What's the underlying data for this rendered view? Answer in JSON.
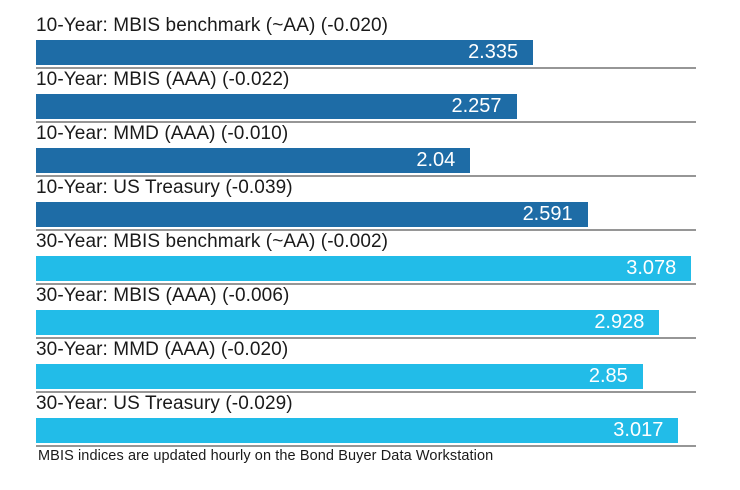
{
  "chart_data": {
    "type": "bar",
    "orientation": "horizontal",
    "title": "",
    "xlabel": "",
    "ylabel": "",
    "xlim": [
      0,
      3.1
    ],
    "grid": false,
    "legend": false,
    "bars": [
      {
        "label": "10-Year: MBIS benchmark (~AA) (-0.020)",
        "value": 2.335,
        "value_label": "2.335",
        "group": "10-year"
      },
      {
        "label": "10-Year: MBIS (AAA) (-0.022)",
        "value": 2.257,
        "value_label": "2.257",
        "group": "10-year"
      },
      {
        "label": "10-Year: MMD (AAA) (-0.010)",
        "value": 2.04,
        "value_label": "2.04",
        "group": "10-year"
      },
      {
        "label": "10-Year: US Treasury (-0.039)",
        "value": 2.591,
        "value_label": "2.591",
        "group": "10-year"
      },
      {
        "label": "30-Year: MBIS benchmark (~AA) (-0.002)",
        "value": 3.078,
        "value_label": "3.078",
        "group": "30-year"
      },
      {
        "label": "30-Year: MBIS (AAA) (-0.006)",
        "value": 2.928,
        "value_label": "2.928",
        "group": "30-year"
      },
      {
        "label": "30-Year: MMD (AAA) (-0.020)",
        "value": 2.85,
        "value_label": "2.85",
        "group": "30-year"
      },
      {
        "label": "30-Year: US Treasury (-0.029)",
        "value": 3.017,
        "value_label": "3.017",
        "group": "30-year"
      }
    ],
    "colors": {
      "10-year": "#1e6ca6",
      "30-year": "#22bce8"
    },
    "separator_color": "#969696",
    "value_text_color": "#ffffff",
    "label_text_color": "#1a1a1a"
  },
  "footer": {
    "note": "MBIS indices are updated hourly on the Bond Buyer Data Workstation"
  }
}
